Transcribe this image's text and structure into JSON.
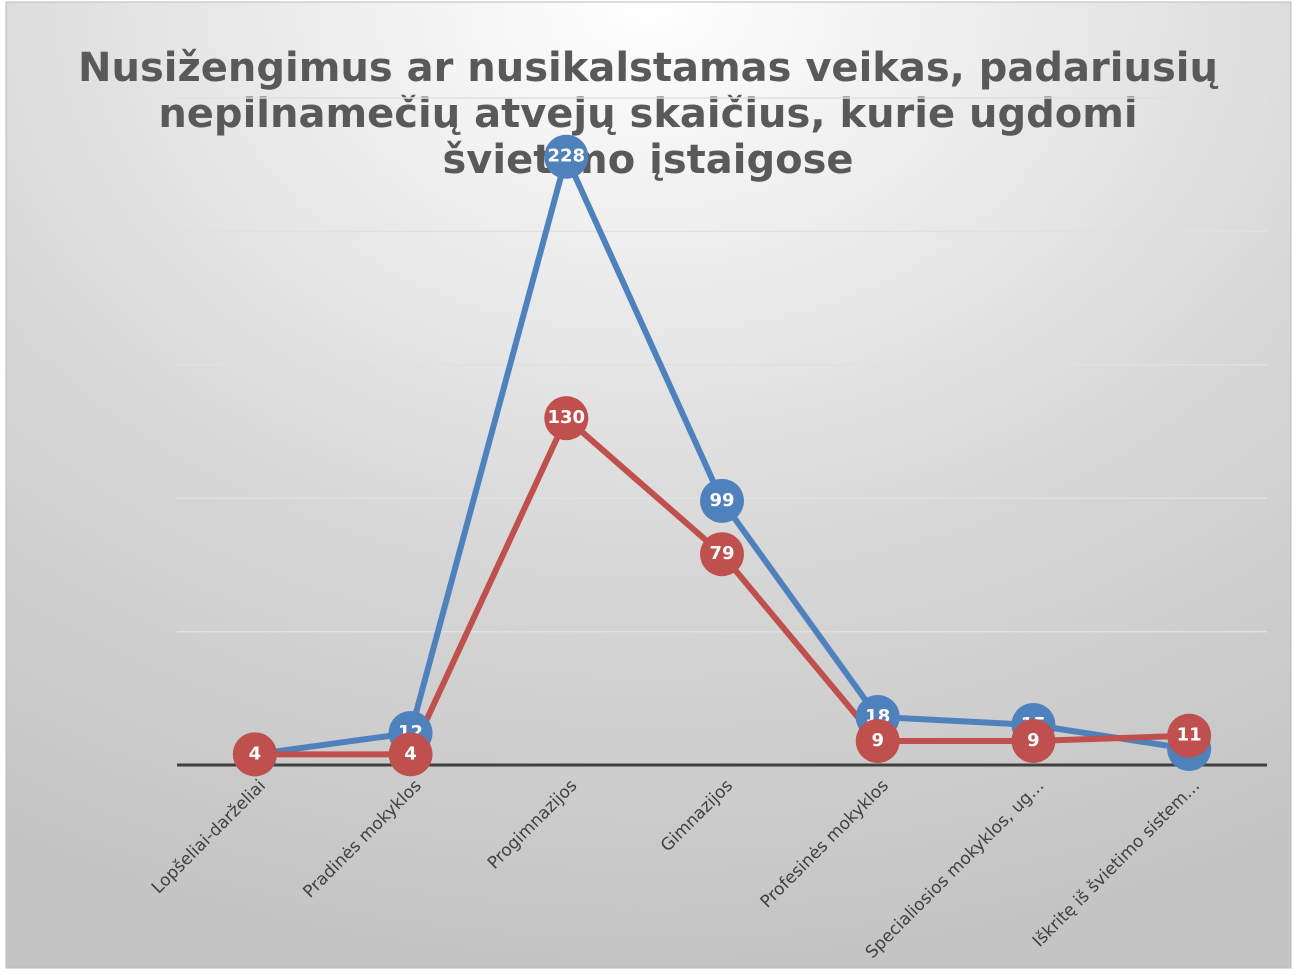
{
  "chart_data": {
    "type": "line",
    "title": [
      "Nusižengimus ar nusikalstamas veikas, padariusių",
      "nepilnamečių atvejų skaičius, kurie ugdomi",
      "švietimo įstaigose"
    ],
    "categories": [
      "Lopšeliai-darželiai",
      "Pradinės mokyklos",
      "Progimnazijos",
      "Gimnazijos",
      "Profesinės mokyklos",
      "Specialiosios mokyklos, ug…",
      "Iškritę iš švietimo sistem…"
    ],
    "series": [
      {
        "color": "#4f81bd",
        "values": [
          4,
          12,
          228,
          99,
          18,
          15,
          6
        ]
      },
      {
        "color": "#c0504d",
        "values": [
          4,
          4,
          130,
          79,
          9,
          9,
          11
        ]
      }
    ],
    "ylim": [
      0,
      250
    ],
    "yticks": [
      0,
      50,
      100,
      150,
      200,
      250
    ],
    "grid": true
  }
}
